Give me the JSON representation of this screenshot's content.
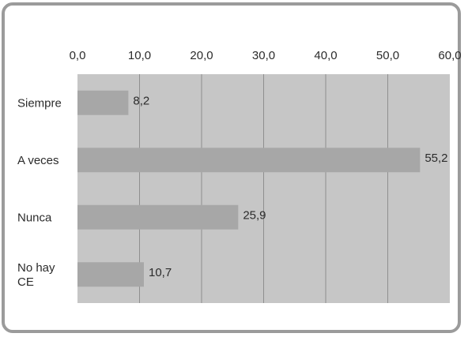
{
  "chart_data": {
    "type": "bar",
    "orientation": "horizontal",
    "title": "",
    "xlabel": "",
    "ylabel": "",
    "categories": [
      "Siempre",
      "A veces",
      "Nunca",
      "No hay CE"
    ],
    "category_lines": [
      [
        "Siempre"
      ],
      [
        "A veces"
      ],
      [
        "Nunca"
      ],
      [
        "No hay",
        "CE"
      ]
    ],
    "values": [
      8.2,
      55.2,
      25.9,
      10.7
    ],
    "value_labels": [
      "8,2",
      "55,2",
      "25,9",
      "10,7"
    ],
    "xlim": [
      0,
      60
    ],
    "xticks": [
      0,
      10,
      20,
      30,
      40,
      50,
      60
    ],
    "xtick_labels": [
      "0,0",
      "10,0",
      "20,0",
      "30,0",
      "40,0",
      "50,0",
      "60,0"
    ],
    "grid": true,
    "legend": "none",
    "axis_position": "top",
    "colors": {
      "plot_background": "#c6c6c6",
      "bar": "#a7a7a7",
      "grid": "#8f8f8f",
      "frame_border": "#9b9b9b"
    }
  }
}
